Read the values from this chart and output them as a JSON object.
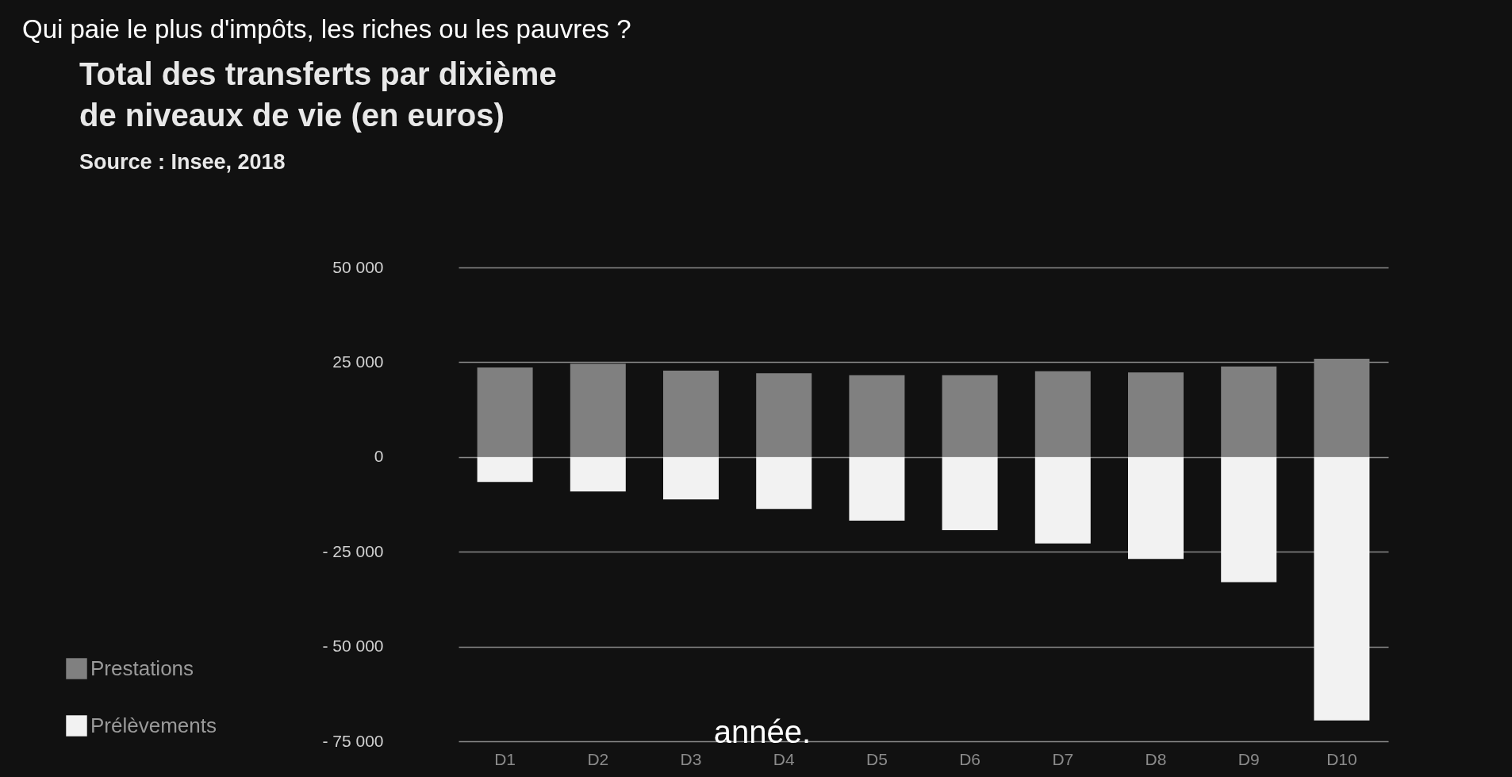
{
  "chart_data": {
    "type": "bar",
    "title": "Total des transferts par  dixième de niveaux de vie (en euros)",
    "annotations": [
      "Source : Insee, 2018",
      "Qui paie le plus d'impôts, les riches ou les pauvres ?",
      "année."
    ],
    "categories": [
      "D1",
      "D2",
      "D3",
      "D4",
      "D5",
      "D6",
      "D7",
      "D8",
      "D9",
      "D10"
    ],
    "series": [
      {
        "name": "Prestations",
        "color": "#808080",
        "values": [
          23600,
          24600,
          22800,
          22100,
          21600,
          21600,
          22600,
          22300,
          23900,
          25900
        ]
      },
      {
        "name": "Prélèvements",
        "color": "#f2f2f2",
        "values": [
          -6600,
          -9100,
          -11200,
          -13700,
          -16800,
          -19300,
          -22800,
          -26900,
          -33000,
          -69500
        ]
      }
    ],
    "stacked": true,
    "ylim": [
      -75000,
      50000
    ],
    "yticks": [
      {
        "value": -75000,
        "label": "- 75 000"
      },
      {
        "value": -50000,
        "label": "- 50 000"
      },
      {
        "value": -25000,
        "label": "- 25 000"
      },
      0,
      {
        "value": 25000,
        "label": "25 000"
      },
      {
        "value": 50000,
        "label": "50 000"
      }
    ],
    "grid": "y",
    "legend": "bottom left"
  }
}
